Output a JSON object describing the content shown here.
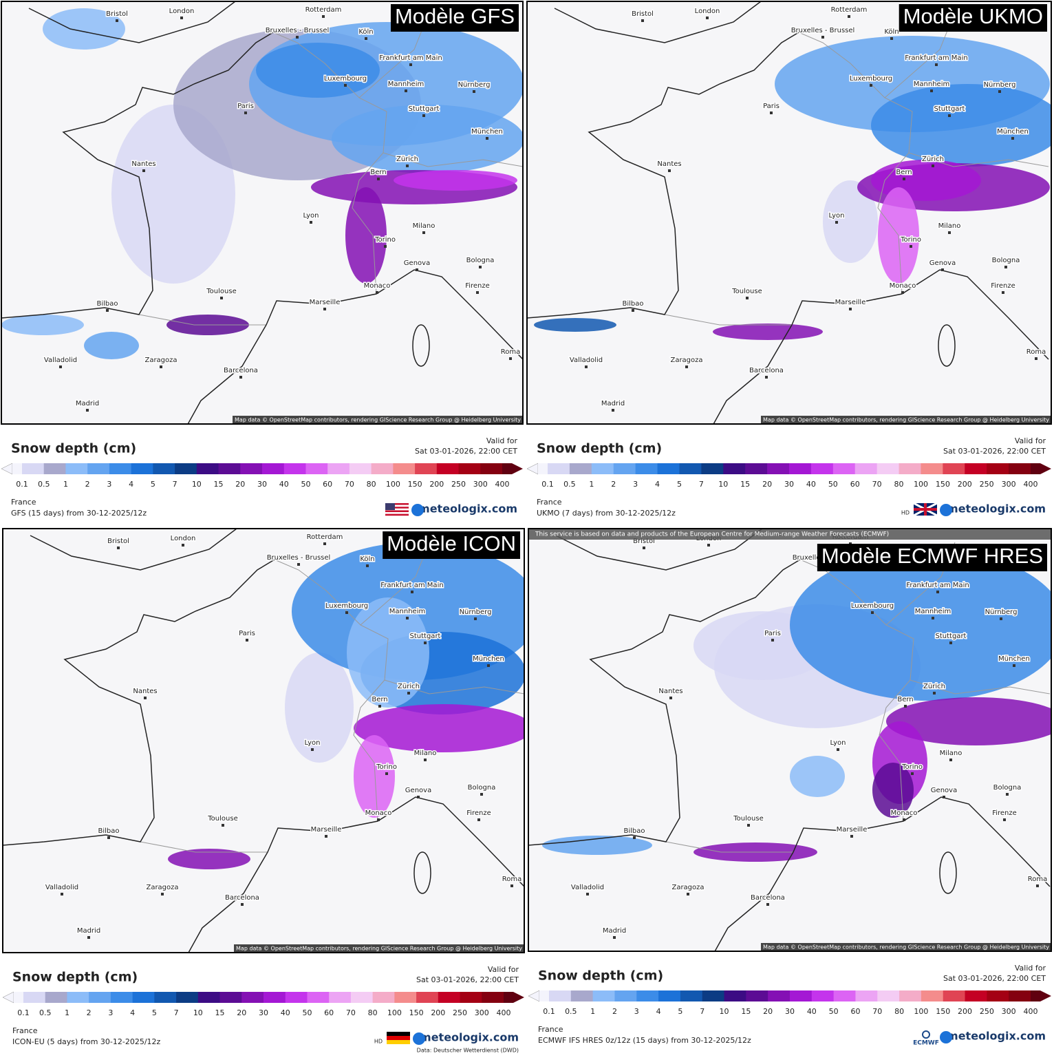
{
  "panels": [
    {
      "title": "Modèle GFS",
      "legend_title": "Snow depth (cm)",
      "valid_label": "Valid for",
      "valid_time": "Sat 03-01-2026, 22:00 CET",
      "region": "France",
      "model": "GFS (15 days) from  30-12-2025/12z",
      "brand": "meteologix.com",
      "attribution": "Map data © OpenStreetMap contributors, rendering GIScience Research Group @ Heidelberg University"
    },
    {
      "title": "Modèle UKMO",
      "legend_title": "Snow depth (cm)",
      "valid_label": "Valid for",
      "valid_time": "Sat 03-01-2026, 22:00 CET",
      "region": "France",
      "model": "UKMO (7 days) from  30-12-2025/12z",
      "brand": "meteologix.com",
      "hd": "HD",
      "attribution": "Map data © OpenStreetMap contributors, rendering GIScience Research Group @ Heidelberg University"
    },
    {
      "title": "Modèle ICON",
      "legend_title": "Snow depth (cm)",
      "valid_label": "Valid for",
      "valid_time": "Sat 03-01-2026, 22:00 CET",
      "region": "France",
      "model": "ICON-EU (5 days) from  30-12-2025/12z",
      "brand": "meteologix.com",
      "hd": "HD",
      "data_credit": "Data: Deutscher Wetterdienst (DWD)",
      "attribution": "Map data © OpenStreetMap contributors, rendering GIScience Research Group @ Heidelberg University"
    },
    {
      "title": "Modèle ECMWF HRES",
      "legend_title": "Snow depth (cm)",
      "valid_label": "Valid for",
      "valid_time": "Sat 03-01-2026, 22:00 CET",
      "region": "France",
      "model": "ECMWF IFS HRES 0z/12z (15 days) from  30-12-2025/12z",
      "brand": "meteologix.com",
      "ecmwf_logo": "ECMWF",
      "banner": "This service is based on data and products of the European Centre for Medium-range Weather Forecasts (ECMWF)",
      "attribution": "Map data © OpenStreetMap contributors, rendering GIScience Research Group @ Heidelberg University"
    }
  ],
  "cities": [
    "Bristol",
    "London",
    "Rotterdam",
    "Bruxelles - Brussel",
    "Köln",
    "Frankfurt am Main",
    "Luxembourg",
    "Paris",
    "Mannheim",
    "Nürnberg",
    "Stuttgart",
    "München",
    "Nantes",
    "Zürich",
    "Bern",
    "Lyon",
    "Milano",
    "Torino",
    "Genova",
    "Bologna",
    "Monaco",
    "Firenze",
    "Toulouse",
    "Marseille",
    "Bilbao",
    "Valladolid",
    "Zaragoza",
    "Barcelona",
    "Madrid",
    "Roma"
  ],
  "legend": {
    "ticks": [
      "0.1",
      "0.5",
      "1",
      "2",
      "3",
      "4",
      "5",
      "7",
      "10",
      "15",
      "20",
      "30",
      "40",
      "50",
      "60",
      "70",
      "80",
      "100",
      "150",
      "200",
      "250",
      "300",
      "400"
    ],
    "colors": [
      "#f4f4fc",
      "#d8d8f4",
      "#a8a8cc",
      "#8cbcf8",
      "#64a4f0",
      "#3c8ce8",
      "#1c72d8",
      "#1258b0",
      "#0c3c84",
      "#3c0c84",
      "#5c0c94",
      "#8410b4",
      "#a418d4",
      "#c434ec",
      "#dc64f4",
      "#eca4f4",
      "#f4ccf4",
      "#f4acc8",
      "#f48c8c",
      "#e04454",
      "#c40024",
      "#a40014",
      "#840010",
      "#600010"
    ]
  }
}
